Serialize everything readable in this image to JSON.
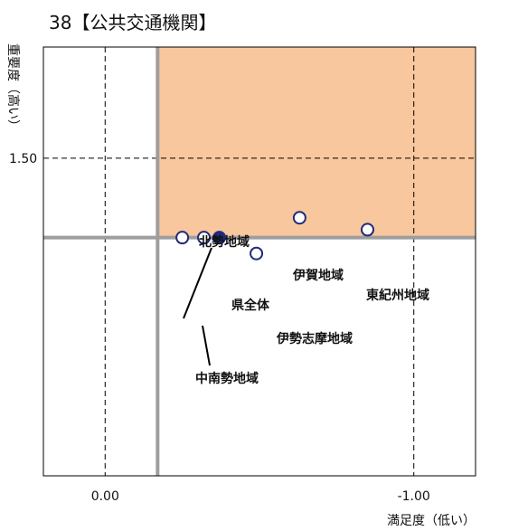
{
  "chart_data": {
    "type": "scatter",
    "title": "38【公共交通機関】",
    "xlabel": "満足度（低い）",
    "ylabel": "重要度（高い）",
    "x_tick_labels": [
      {
        "value": 0.0,
        "label": "0.00"
      },
      {
        "value": -1.0,
        "label": "-1.00"
      }
    ],
    "y_tick_labels": [
      {
        "value": 1.5,
        "label": "1.50"
      }
    ],
    "xlim": [
      0.2,
      -1.2
    ],
    "ylim": [
      0.7,
      1.78
    ],
    "reference": {
      "x": -0.17,
      "y": 1.3
    },
    "points": [
      {
        "name": "北勢地域",
        "x": -0.25,
        "y": 1.3,
        "filled": false
      },
      {
        "name": "中南勢地域",
        "x": -0.32,
        "y": 1.3,
        "filled": false
      },
      {
        "name": "県全体",
        "x": -0.37,
        "y": 1.3,
        "filled": true
      },
      {
        "name": "伊勢志摩地域",
        "x": -0.49,
        "y": 1.26,
        "filled": false
      },
      {
        "name": "伊賀地域",
        "x": -0.63,
        "y": 1.35,
        "filled": false
      },
      {
        "name": "東紀州地域",
        "x": -0.85,
        "y": 1.32,
        "filled": false
      }
    ],
    "highlight_fill": "#f9c79d",
    "marker_color": "#1f2a7a",
    "reference_line_color": "#9e9e9e",
    "grid": false
  }
}
